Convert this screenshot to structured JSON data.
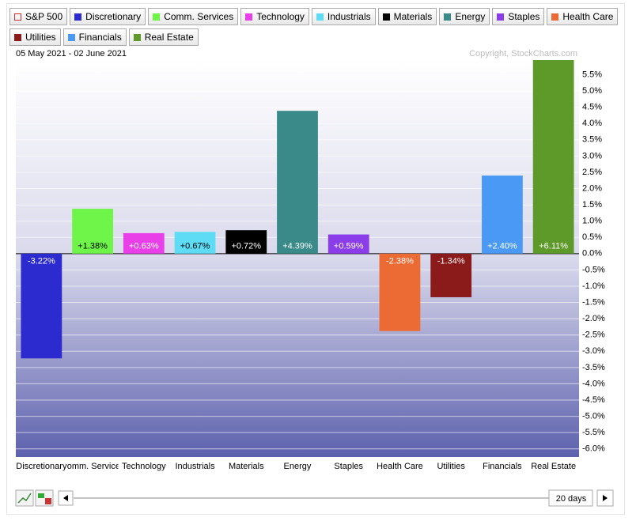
{
  "chart_data": {
    "type": "bar",
    "legend": [
      {
        "name": "S&P 500",
        "color": "#d03030",
        "hollow": true
      },
      {
        "name": "Discretionary",
        "color": "#2b2bcf"
      },
      {
        "name": "Comm. Services",
        "color": "#6ff54a"
      },
      {
        "name": "Technology",
        "color": "#e83fe8"
      },
      {
        "name": "Industrials",
        "color": "#5fdcf5"
      },
      {
        "name": "Materials",
        "color": "#000000"
      },
      {
        "name": "Energy",
        "color": "#3a8a8a"
      },
      {
        "name": "Staples",
        "color": "#8a3de8"
      },
      {
        "name": "Health Care",
        "color": "#ec6a34"
      },
      {
        "name": "Utilities",
        "color": "#8b1a1a"
      },
      {
        "name": "Financials",
        "color": "#4a9af5"
      },
      {
        "name": "Real Estate",
        "color": "#5e9a2a"
      }
    ],
    "subtitle": "05 May 2021 - 02 June 2021",
    "copyright": "Copyright, StockCharts.com",
    "categories": [
      "Discretionary",
      "Comm. Services",
      "Technology",
      "Industrials",
      "Materials",
      "Energy",
      "Staples",
      "Health Care",
      "Utilities",
      "Financials",
      "Real Estate"
    ],
    "values": [
      -3.22,
      1.38,
      0.63,
      0.67,
      0.72,
      4.39,
      0.59,
      -2.38,
      -1.34,
      2.4,
      6.11
    ],
    "value_labels": [
      "-3.22%",
      "+1.38%",
      "+0.63%",
      "+0.67%",
      "+0.72%",
      "+4.39%",
      "+0.59%",
      "-2.38%",
      "-1.34%",
      "+2.40%",
      "+6.11%"
    ],
    "colors": [
      "#2b2bcf",
      "#6ff54a",
      "#e83fe8",
      "#5fdcf5",
      "#000000",
      "#3a8a8a",
      "#8a3de8",
      "#ec6a34",
      "#8b1a1a",
      "#4a9af5",
      "#5e9a2a"
    ],
    "ylim": [
      -6.25,
      5.95
    ],
    "yticks": [
      {
        "value": -6.0,
        "label": "-6.0%"
      },
      {
        "value": -5.5,
        "label": "-5.5%"
      },
      {
        "value": -5.0,
        "label": "-5.0%"
      },
      {
        "value": -4.5,
        "label": "-4.5%"
      },
      {
        "value": -4.0,
        "label": "-4.0%"
      },
      {
        "value": -3.5,
        "label": "-3.5%"
      },
      {
        "value": -3.0,
        "label": "-3.0%"
      },
      {
        "value": -2.5,
        "label": "-2.5%"
      },
      {
        "value": -2.0,
        "label": "-2.0%"
      },
      {
        "value": -1.5,
        "label": "-1.5%"
      },
      {
        "value": -1.0,
        "label": "-1.0%"
      },
      {
        "value": -0.5,
        "label": "-0.5%"
      },
      {
        "value": 0.0,
        "label": "0.0%"
      },
      {
        "value": 0.5,
        "label": "0.5%"
      },
      {
        "value": 1.0,
        "label": "1.0%"
      },
      {
        "value": 1.5,
        "label": "1.5%"
      },
      {
        "value": 2.0,
        "label": "2.0%"
      },
      {
        "value": 2.5,
        "label": "2.5%"
      },
      {
        "value": 3.0,
        "label": "3.0%"
      },
      {
        "value": 3.5,
        "label": "3.5%"
      },
      {
        "value": 4.0,
        "label": "4.0%"
      },
      {
        "value": 4.5,
        "label": "4.5%"
      },
      {
        "value": 5.0,
        "label": "5.0%"
      },
      {
        "value": 5.5,
        "label": "5.5%"
      }
    ],
    "grid": true,
    "period": "20 days"
  }
}
